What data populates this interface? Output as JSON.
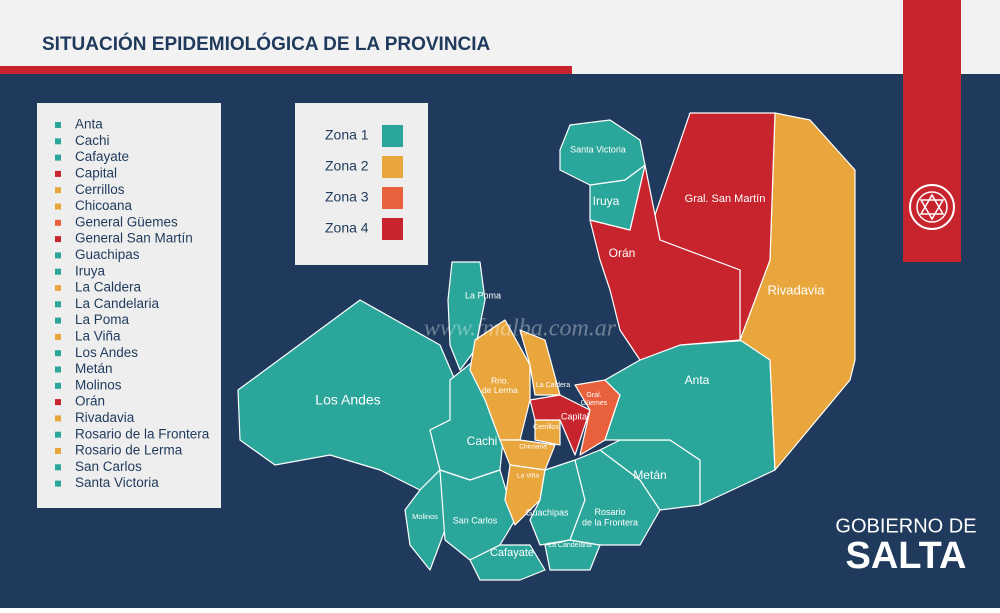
{
  "header": {
    "title": "SITUACIÓN EPIDEMIOLÓGICA DE LA PROVINCIA"
  },
  "departments": [
    {
      "name": "Anta",
      "color": "#2aa69a"
    },
    {
      "name": "Cachi",
      "color": "#2aa69a"
    },
    {
      "name": "Cafayate",
      "color": "#2aa69a"
    },
    {
      "name": "Capital",
      "color": "#c8242e"
    },
    {
      "name": "Cerrillos",
      "color": "#e9a63c"
    },
    {
      "name": "Chicoana",
      "color": "#e9a63c"
    },
    {
      "name": "General Güemes",
      "color": "#e8603c"
    },
    {
      "name": "General San Martín",
      "color": "#c8242e"
    },
    {
      "name": "Guachipas",
      "color": "#2aa69a"
    },
    {
      "name": "Iruya",
      "color": "#2aa69a"
    },
    {
      "name": "La Caldera",
      "color": "#e9a63c"
    },
    {
      "name": "La Candelaria",
      "color": "#2aa69a"
    },
    {
      "name": "La Poma",
      "color": "#2aa69a"
    },
    {
      "name": "La Viña",
      "color": "#e9a63c"
    },
    {
      "name": "Los Andes",
      "color": "#2aa69a"
    },
    {
      "name": "Metán",
      "color": "#2aa69a"
    },
    {
      "name": "Molinos",
      "color": "#2aa69a"
    },
    {
      "name": "Orán",
      "color": "#c8242e"
    },
    {
      "name": "Rivadavia",
      "color": "#e9a63c"
    },
    {
      "name": "Rosario de la Frontera",
      "color": "#2aa69a"
    },
    {
      "name": "Rosario de Lerma",
      "color": "#e9a63c"
    },
    {
      "name": "San Carlos",
      "color": "#2aa69a"
    },
    {
      "name": "Santa Victoria",
      "color": "#2aa69a"
    }
  ],
  "legend": {
    "zones": [
      {
        "label": "Zona 1",
        "color": "#2aa69a"
      },
      {
        "label": "Zona 2",
        "color": "#e9a63c"
      },
      {
        "label": "Zona 3",
        "color": "#e8603c"
      },
      {
        "label": "Zona 4",
        "color": "#c8242e"
      }
    ]
  },
  "map_labels": [
    {
      "lines": [
        "Santa Victoria"
      ]
    },
    {
      "lines": [
        "Iruya"
      ]
    },
    {
      "lines": [
        "Gral. San Martín"
      ]
    },
    {
      "lines": [
        "Orán"
      ]
    },
    {
      "lines": [
        "Rivadavia"
      ]
    },
    {
      "lines": [
        "La Poma"
      ]
    },
    {
      "lines": [
        "Los Andes"
      ]
    },
    {
      "lines": [
        "Anta"
      ]
    },
    {
      "lines": [
        "Rrio.",
        "de Lerma"
      ]
    },
    {
      "lines": [
        "La Caldera"
      ]
    },
    {
      "lines": [
        "Gral.",
        "Güemes"
      ]
    },
    {
      "lines": [
        "Capital"
      ]
    },
    {
      "lines": [
        "Cerrillos"
      ]
    },
    {
      "lines": [
        "Cachi"
      ]
    },
    {
      "lines": [
        "Chicoana"
      ]
    },
    {
      "lines": [
        "La Viña"
      ]
    },
    {
      "lines": [
        "Metán"
      ]
    },
    {
      "lines": [
        "Molinos"
      ]
    },
    {
      "lines": [
        "San Carlos"
      ]
    },
    {
      "lines": [
        "Guachipas"
      ]
    },
    {
      "lines": [
        "Rosario",
        "de la Frontera"
      ]
    },
    {
      "lines": [
        "Cafayate"
      ]
    },
    {
      "lines": [
        "La Candelaria"
      ]
    }
  ],
  "watermark": "www.fmalba.com.ar",
  "branding": {
    "line1": "GOBIERNO DE",
    "line2": "SALTA"
  }
}
